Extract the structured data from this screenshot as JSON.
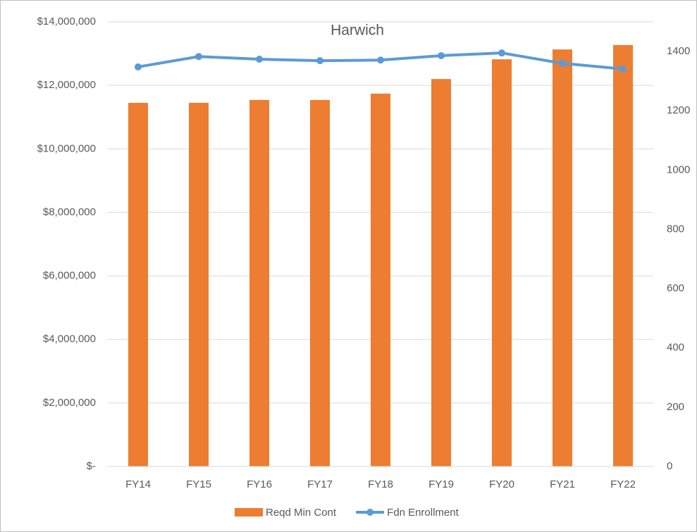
{
  "chart_data": {
    "type": "combo",
    "title": "Harwich",
    "categories": [
      "FY14",
      "FY15",
      "FY16",
      "FY17",
      "FY18",
      "FY19",
      "FY20",
      "FY21",
      "FY22"
    ],
    "series": [
      {
        "name": "Reqd Min Cont",
        "type": "bar",
        "color": "#ed7d31",
        "values": [
          11450000,
          11450000,
          11540000,
          11540000,
          11740000,
          12200000,
          12820000,
          13130000,
          13270000
        ]
      },
      {
        "name": "Fdn Enrollment",
        "type": "line",
        "axis": "y2",
        "color": "#5b9bd5",
        "values": [
          1348,
          1383,
          1374,
          1369,
          1371,
          1386,
          1395,
          1360,
          1341
        ]
      }
    ],
    "ylim": [
      0,
      14000000
    ],
    "yticks": [
      {
        "value": 0,
        "label": "$-"
      },
      {
        "value": 2000000,
        "label": "$2,000,000"
      },
      {
        "value": 4000000,
        "label": "$4,000,000"
      },
      {
        "value": 6000000,
        "label": "$6,000,000"
      },
      {
        "value": 8000000,
        "label": "$8,000,000"
      },
      {
        "value": 10000000,
        "label": "$10,000,000"
      },
      {
        "value": 12000000,
        "label": "$12,000,000"
      },
      {
        "value": 14000000,
        "label": "$14,000,000"
      }
    ],
    "y2lim": [
      0,
      1500
    ],
    "y2ticks": [
      0,
      200,
      400,
      600,
      800,
      1000,
      1200,
      1400
    ],
    "grid": true,
    "legend": "bottom"
  }
}
